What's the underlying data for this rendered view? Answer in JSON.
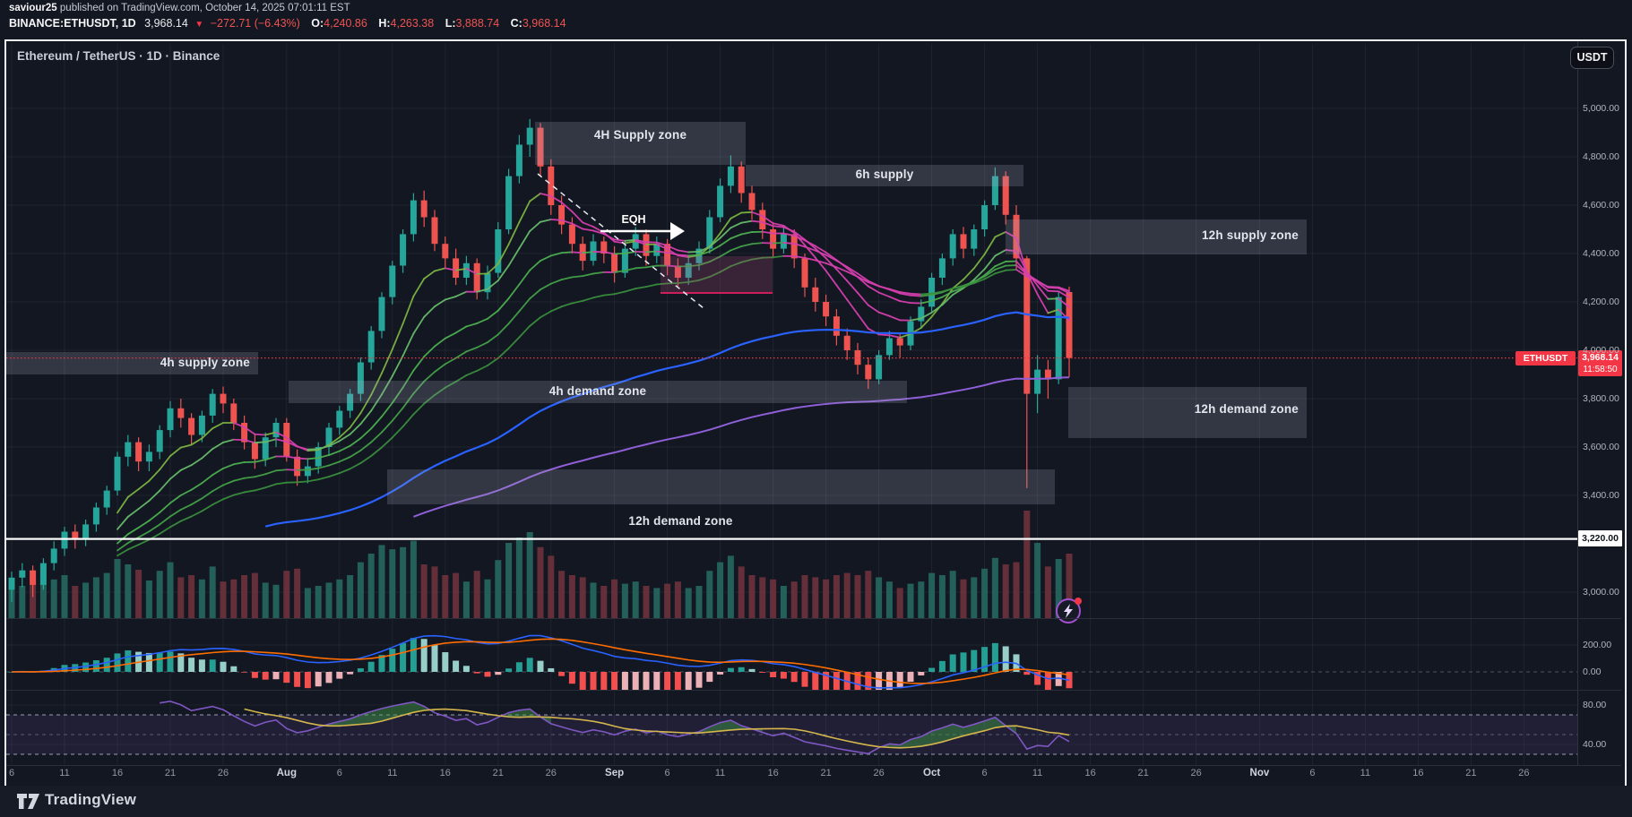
{
  "header": {
    "author": "saviour25",
    "published_suffix": "published on TradingView.com, October 14, 2025 07:01:11 EST",
    "symbol": "BINANCE:ETHUSDT, 1D",
    "last_price": "3,968.14",
    "direction_icon": "▼",
    "change": "−272.71 (−6.43%)",
    "o_label": "O:",
    "o_value": "4,240.86",
    "h_label": "H:",
    "h_value": "4,263.38",
    "l_label": "L:",
    "l_value": "3,888.74",
    "c_label": "C:",
    "c_value": "3,968.14"
  },
  "chart": {
    "title": "Ethereum / TetherUS · 1D · Binance",
    "currency_button": "USDT"
  },
  "zones": {
    "supply_4h_top": "4H Supply zone",
    "supply_6h": "6h supply",
    "supply_12h": "12h supply zone",
    "supply_4h_left": "4h supply zone",
    "demand_4h": "4h demand zone",
    "demand_12h_right": "12h demand zone",
    "demand_12h_mid": "12h demand zone",
    "eqh": "EQH"
  },
  "price_marker": {
    "symbol": "ETHUSDT",
    "price": "3,968.14",
    "countdown": "11:58:50"
  },
  "levels": {
    "white_line_label": "3,220.00"
  },
  "watermark": {
    "brand": "TradingView"
  },
  "axes": {
    "price_ticks": [
      5000,
      4800,
      4600,
      4400,
      4200,
      4000,
      3800,
      3600,
      3400,
      3000
    ],
    "macd_ticks": [
      200,
      0
    ],
    "rsi_ticks": [
      80,
      40
    ],
    "time_ticks": [
      [
        "6",
        0
      ],
      [
        "11",
        5
      ],
      [
        "16",
        10
      ],
      [
        "21",
        15
      ],
      [
        "26",
        20
      ],
      [
        "Aug",
        26
      ],
      [
        "6",
        31
      ],
      [
        "11",
        36
      ],
      [
        "16",
        41
      ],
      [
        "21",
        46
      ],
      [
        "26",
        51
      ],
      [
        "Sep",
        57
      ],
      [
        "6",
        62
      ],
      [
        "11",
        67
      ],
      [
        "16",
        72
      ],
      [
        "21",
        77
      ],
      [
        "26",
        82
      ],
      [
        "Oct",
        87
      ],
      [
        "6",
        92
      ],
      [
        "11",
        97
      ],
      [
        "16",
        102
      ],
      [
        "21",
        107
      ],
      [
        "26",
        112
      ],
      [
        "Nov",
        118
      ],
      [
        "6",
        123
      ],
      [
        "11",
        128
      ],
      [
        "16",
        133
      ],
      [
        "21",
        138
      ],
      [
        "26",
        143
      ]
    ]
  },
  "chart_data": {
    "type": "candlestick",
    "symbol": "BINANCE:ETHUSDT",
    "interval": "1D",
    "exchange": "Binance",
    "start_date": "2025-07-06",
    "end_date": "2025-10-14",
    "current_price": 3968.14,
    "marked_level": 3220.0,
    "last_bar": {
      "open": 4240.86,
      "high": 4263.38,
      "low": 3888.74,
      "close": 3968.14,
      "change": -272.71,
      "change_pct": -6.43
    },
    "price_axis_ticks": [
      5000,
      4800,
      4600,
      4400,
      4200,
      4000,
      3800,
      3600,
      3400,
      3000
    ],
    "zones_price_ranges": {
      "supply_4h_top": [
        4767,
        4944
      ],
      "supply_6h": [
        4678,
        4767
      ],
      "supply_12h": [
        4233,
        4378
      ],
      "supply_4h_left": [
        3900,
        3993
      ],
      "demand_4h": [
        3781,
        3874
      ],
      "demand_12h_right": [
        3637,
        3848
      ],
      "demand_12h_mid": [
        3363,
        3507
      ]
    },
    "indicators": {
      "ma_ribbon_periods": [
        8,
        13,
        21,
        28,
        36
      ],
      "ma_long_periods": [
        80,
        150
      ],
      "macd_params": [
        12,
        26,
        9
      ],
      "rsi_params": [
        14,
        9
      ],
      "macd_axis_ticks": [
        200,
        0
      ],
      "rsi_axis_ticks": [
        80,
        40
      ],
      "rsi_bands": [
        70,
        50,
        30
      ]
    },
    "colors": {
      "up": "#26a69a",
      "down": "#ef5350",
      "vol_up": "#26675f",
      "vol_down": "#6c323d",
      "ribbon_bull": [
        "#7cb342",
        "#66bb6a",
        "#4caf50",
        "#43a047",
        "#388e3c"
      ],
      "ribbon_bear": "#d53fae",
      "ma_blue": "#2962ff",
      "ma_purple": "#8e5fd8",
      "macd_line": "#2962ff",
      "macd_signal": "#ff6d00",
      "hist_up_rise": "#26a69a",
      "hist_up_fall": "#9fd8d2",
      "hist_dn_fall": "#ff5252",
      "hist_dn_rise": "#f8b9c0",
      "rsi_line": "#7e57c2",
      "rsi_ma": "#d4b64d",
      "price_line": "#f23645",
      "white_line": "#ffffff"
    },
    "candles": [
      [
        3010,
        3085,
        2960,
        3060,
        35
      ],
      [
        3060,
        3120,
        3020,
        3090,
        30
      ],
      [
        3090,
        3110,
        2980,
        3030,
        38
      ],
      [
        3030,
        3140,
        3010,
        3120,
        32
      ],
      [
        3120,
        3210,
        3090,
        3180,
        36
      ],
      [
        3180,
        3270,
        3150,
        3250,
        40
      ],
      [
        3250,
        3280,
        3180,
        3220,
        30
      ],
      [
        3220,
        3300,
        3190,
        3280,
        33
      ],
      [
        3280,
        3370,
        3250,
        3350,
        38
      ],
      [
        3350,
        3440,
        3320,
        3420,
        42
      ],
      [
        3420,
        3580,
        3400,
        3560,
        55
      ],
      [
        3560,
        3650,
        3520,
        3620,
        50
      ],
      [
        3620,
        3640,
        3500,
        3540,
        45
      ],
      [
        3540,
        3610,
        3500,
        3580,
        35
      ],
      [
        3580,
        3690,
        3550,
        3670,
        44
      ],
      [
        3670,
        3790,
        3640,
        3760,
        52
      ],
      [
        3760,
        3800,
        3680,
        3720,
        38
      ],
      [
        3720,
        3740,
        3610,
        3650,
        40
      ],
      [
        3650,
        3750,
        3620,
        3730,
        36
      ],
      [
        3730,
        3840,
        3700,
        3820,
        48
      ],
      [
        3820,
        3850,
        3740,
        3780,
        34
      ],
      [
        3780,
        3800,
        3670,
        3700,
        36
      ],
      [
        3700,
        3730,
        3590,
        3620,
        40
      ],
      [
        3620,
        3650,
        3510,
        3550,
        42
      ],
      [
        3550,
        3660,
        3520,
        3640,
        33
      ],
      [
        3640,
        3720,
        3600,
        3700,
        31
      ],
      [
        3700,
        3720,
        3540,
        3560,
        44
      ],
      [
        3560,
        3590,
        3440,
        3480,
        46
      ],
      [
        3480,
        3550,
        3450,
        3520,
        28
      ],
      [
        3520,
        3620,
        3490,
        3600,
        30
      ],
      [
        3600,
        3700,
        3570,
        3680,
        33
      ],
      [
        3680,
        3770,
        3650,
        3750,
        36
      ],
      [
        3750,
        3840,
        3720,
        3820,
        40
      ],
      [
        3820,
        3970,
        3790,
        3950,
        52
      ],
      [
        3950,
        4100,
        3920,
        4080,
        60
      ],
      [
        4080,
        4240,
        4050,
        4220,
        68
      ],
      [
        4220,
        4370,
        4190,
        4350,
        64
      ],
      [
        4350,
        4500,
        4320,
        4480,
        66
      ],
      [
        4480,
        4650,
        4450,
        4620,
        72
      ],
      [
        4620,
        4660,
        4510,
        4550,
        50
      ],
      [
        4550,
        4580,
        4410,
        4440,
        48
      ],
      [
        4440,
        4470,
        4340,
        4380,
        40
      ],
      [
        4380,
        4420,
        4270,
        4300,
        42
      ],
      [
        4300,
        4390,
        4270,
        4360,
        34
      ],
      [
        4360,
        4380,
        4210,
        4240,
        44
      ],
      [
        4240,
        4350,
        4210,
        4320,
        36
      ],
      [
        4320,
        4530,
        4300,
        4500,
        54
      ],
      [
        4500,
        4750,
        4480,
        4720,
        70
      ],
      [
        4720,
        4890,
        4690,
        4850,
        75
      ],
      [
        4850,
        4956,
        4800,
        4920,
        80
      ],
      [
        4920,
        4940,
        4720,
        4760,
        66
      ],
      [
        4760,
        4790,
        4560,
        4600,
        58
      ],
      [
        4600,
        4640,
        4480,
        4520,
        44
      ],
      [
        4520,
        4550,
        4400,
        4440,
        40
      ],
      [
        4440,
        4470,
        4330,
        4370,
        38
      ],
      [
        4370,
        4480,
        4350,
        4450,
        33
      ],
      [
        4450,
        4470,
        4360,
        4400,
        30
      ],
      [
        4400,
        4430,
        4280,
        4320,
        36
      ],
      [
        4320,
        4450,
        4300,
        4420,
        32
      ],
      [
        4420,
        4510,
        4390,
        4480,
        34
      ],
      [
        4480,
        4500,
        4350,
        4390,
        30
      ],
      [
        4390,
        4470,
        4360,
        4440,
        28
      ],
      [
        4440,
        4460,
        4310,
        4350,
        32
      ],
      [
        4350,
        4380,
        4260,
        4300,
        34
      ],
      [
        4300,
        4390,
        4270,
        4360,
        28
      ],
      [
        4360,
        4450,
        4330,
        4420,
        30
      ],
      [
        4420,
        4580,
        4400,
        4550,
        44
      ],
      [
        4550,
        4710,
        4530,
        4680,
        52
      ],
      [
        4680,
        4806,
        4650,
        4760,
        58
      ],
      [
        4760,
        4780,
        4610,
        4650,
        48
      ],
      [
        4650,
        4680,
        4540,
        4580,
        40
      ],
      [
        4580,
        4610,
        4460,
        4500,
        38
      ],
      [
        4500,
        4530,
        4380,
        4420,
        36
      ],
      [
        4420,
        4510,
        4400,
        4480,
        30
      ],
      [
        4480,
        4500,
        4340,
        4380,
        34
      ],
      [
        4380,
        4400,
        4220,
        4260,
        40
      ],
      [
        4260,
        4300,
        4160,
        4200,
        38
      ],
      [
        4200,
        4230,
        4100,
        4140,
        36
      ],
      [
        4140,
        4170,
        4020,
        4060,
        40
      ],
      [
        4060,
        4090,
        3960,
        4000,
        42
      ],
      [
        4000,
        4030,
        3900,
        3940,
        40
      ],
      [
        3940,
        3970,
        3840,
        3880,
        44
      ],
      [
        3880,
        4000,
        3860,
        3980,
        38
      ],
      [
        3980,
        4080,
        3960,
        4050,
        34
      ],
      [
        4050,
        4070,
        3970,
        4020,
        28
      ],
      [
        4020,
        4140,
        4000,
        4120,
        32
      ],
      [
        4120,
        4210,
        4090,
        4180,
        34
      ],
      [
        4180,
        4320,
        4160,
        4300,
        42
      ],
      [
        4300,
        4400,
        4270,
        4380,
        40
      ],
      [
        4380,
        4500,
        4350,
        4480,
        44
      ],
      [
        4480,
        4510,
        4380,
        4420,
        36
      ],
      [
        4420,
        4520,
        4390,
        4500,
        38
      ],
      [
        4500,
        4620,
        4470,
        4600,
        46
      ],
      [
        4600,
        4756,
        4580,
        4720,
        56
      ],
      [
        4720,
        4740,
        4520,
        4560,
        50
      ],
      [
        4560,
        4600,
        4330,
        4380,
        52
      ],
      [
        4380,
        4390,
        3430,
        3820,
        100
      ],
      [
        3820,
        3980,
        3740,
        3920,
        70
      ],
      [
        3920,
        3960,
        3800,
        3880,
        48
      ],
      [
        3880,
        4240,
        3860,
        4220,
        55
      ],
      [
        4240.86,
        4263.38,
        3888.74,
        3968.14,
        60
      ]
    ]
  }
}
